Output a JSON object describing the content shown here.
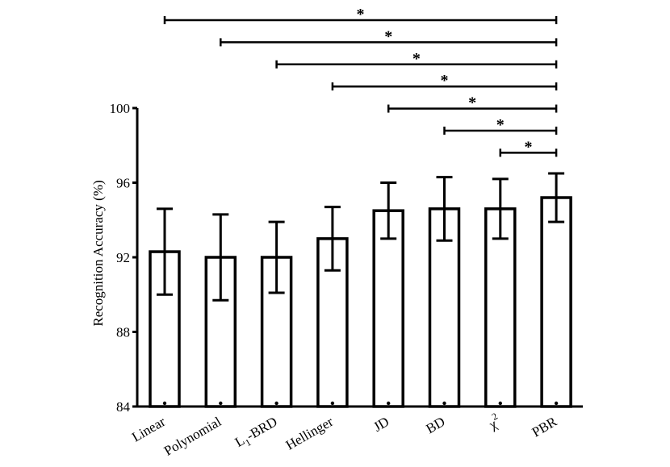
{
  "chart_data": {
    "type": "bar",
    "title": "",
    "xlabel": "",
    "ylabel": "Recognition Accuracy (%)",
    "ylim": [
      84,
      100
    ],
    "yticks": [
      "84",
      "88",
      "92",
      "96",
      "100"
    ],
    "categories": [
      {
        "label": "Linear"
      },
      {
        "label": "Polynomial"
      },
      {
        "label": "L",
        "sub": "1",
        "rest": "-BRD"
      },
      {
        "label": "Hellinger"
      },
      {
        "label": "JD"
      },
      {
        "label": "BD"
      },
      {
        "label": "χ",
        "sup": "2"
      },
      {
        "label": "PBR"
      }
    ],
    "values": [
      92.3,
      92.0,
      92.0,
      93.0,
      94.5,
      94.6,
      94.6,
      95.2
    ],
    "errors": [
      2.3,
      2.3,
      1.9,
      1.7,
      1.5,
      1.7,
      1.6,
      1.3
    ],
    "significance": [
      {
        "from": 0,
        "to": 7,
        "label": "*"
      },
      {
        "from": 1,
        "to": 7,
        "label": "*"
      },
      {
        "from": 2,
        "to": 7,
        "label": "*"
      },
      {
        "from": 3,
        "to": 7,
        "label": "*"
      },
      {
        "from": 4,
        "to": 7,
        "label": "*"
      },
      {
        "from": 5,
        "to": 7,
        "label": "*"
      },
      {
        "from": 6,
        "to": 7,
        "label": "*"
      }
    ],
    "colors": {
      "bar_fill": "#ffffff",
      "stroke": "#000000"
    }
  }
}
